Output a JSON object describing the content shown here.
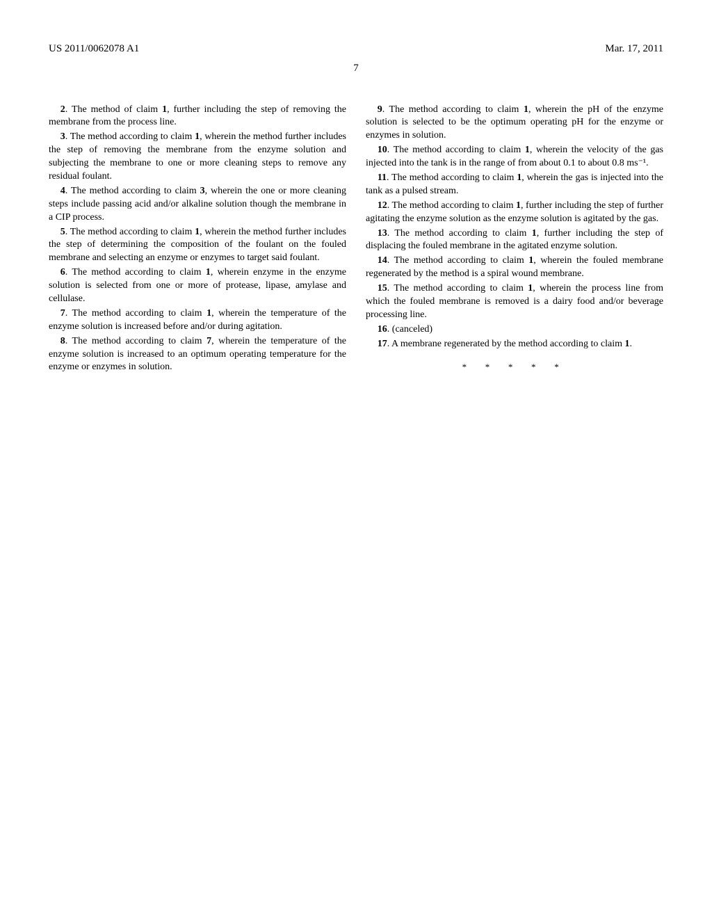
{
  "header": {
    "pub_number": "US 2011/0062078 A1",
    "pub_date": "Mar. 17, 2011"
  },
  "page_number": "7",
  "left_claims": [
    {
      "num": "2",
      "text": ". The method of claim ",
      "ref": "1",
      "tail": ", further including the step of removing the membrane from the process line."
    },
    {
      "num": "3",
      "text": ". The method according to claim ",
      "ref": "1",
      "tail": ", wherein the method further includes the step of removing the membrane from the enzyme solution and subjecting the membrane to one or more cleaning steps to remove any residual foulant."
    },
    {
      "num": "4",
      "text": ". The method according to claim ",
      "ref": "3",
      "tail": ", wherein the one or more cleaning steps include passing acid and/or alkaline solution though the membrane in a CIP process."
    },
    {
      "num": "5",
      "text": ". The method according to claim ",
      "ref": "1",
      "tail": ", wherein the method further includes the step of determining the composition of the foulant on the fouled membrane and selecting an enzyme or enzymes to target said foulant."
    },
    {
      "num": "6",
      "text": ". The method according to claim ",
      "ref": "1",
      "tail": ", wherein enzyme in the enzyme solution is selected from one or more of protease, lipase, amylase and cellulase."
    },
    {
      "num": "7",
      "text": ". The method according to claim ",
      "ref": "1",
      "tail": ", wherein the temperature of the enzyme solution is increased before and/or during agitation."
    },
    {
      "num": "8",
      "text": ". The method according to claim ",
      "ref": "7",
      "tail": ", wherein the temperature of the enzyme solution is increased to an optimum operating temperature for the enzyme or enzymes in solution."
    }
  ],
  "right_claims": [
    {
      "num": "9",
      "text": ". The method according to claim ",
      "ref": "1",
      "tail": ", wherein the pH of the enzyme solution is selected to be the optimum operating pH for the enzyme or enzymes in solution."
    },
    {
      "num": "10",
      "text": ". The method according to claim ",
      "ref": "1",
      "tail": ", wherein the velocity of the gas injected into the tank is in the range of from about 0.1 to about 0.8 ms⁻¹."
    },
    {
      "num": "11",
      "text": ". The method according to claim ",
      "ref": "1",
      "tail": ", wherein the gas is injected into the tank as a pulsed stream."
    },
    {
      "num": "12",
      "text": ". The method according to claim ",
      "ref": "1",
      "tail": ", further including the step of further agitating the enzyme solution as the enzyme solution is agitated by the gas."
    },
    {
      "num": "13",
      "text": ". The method according to claim ",
      "ref": "1",
      "tail": ", further including the step of displacing the fouled membrane in the agitated enzyme solution."
    },
    {
      "num": "14",
      "text": ". The method according to claim ",
      "ref": "1",
      "tail": ", wherein the fouled membrane regenerated by the method is a spiral wound membrane."
    },
    {
      "num": "15",
      "text": ". The method according to claim ",
      "ref": "1",
      "tail": ", wherein the process line from which the fouled membrane is removed is a dairy food and/or beverage processing line."
    }
  ],
  "claim16": {
    "num": "16",
    "text": ". (canceled)"
  },
  "claim17": {
    "num": "17",
    "text": ". A membrane regenerated by the method according to claim ",
    "ref": "1",
    "tail": "."
  },
  "end_marks": "* * * * *"
}
